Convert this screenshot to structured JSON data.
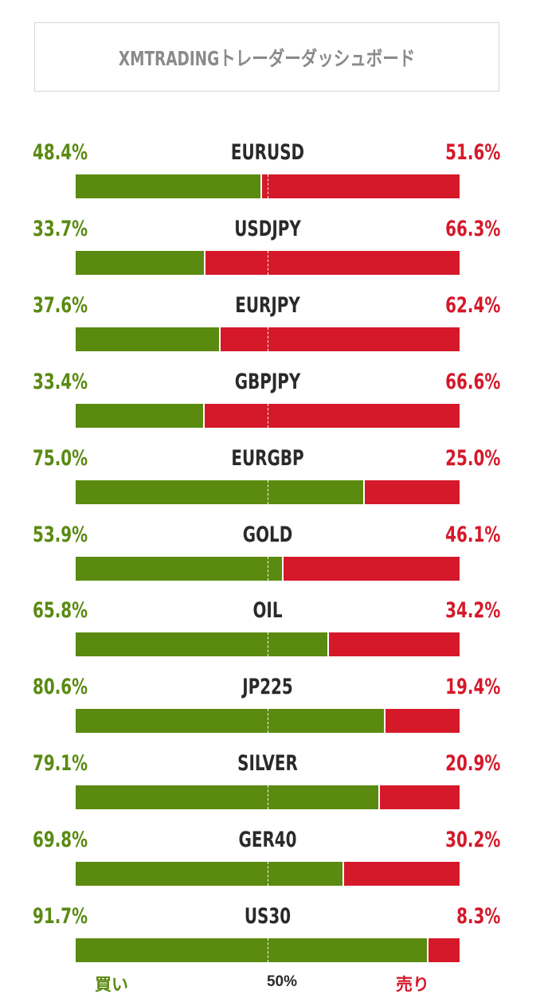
{
  "header": {
    "title": "XMTRADINGトレーダーダッシュボード"
  },
  "colors": {
    "buy": "#5a8a10",
    "sell": "#d5192a",
    "text": "#2a2a2a"
  },
  "chart_data": {
    "type": "bar",
    "orientation": "horizontal-stacked-100",
    "title": "XMTRADINGトレーダーダッシュボード",
    "categories": [
      "EURUSD",
      "USDJPY",
      "EURJPY",
      "GBPJPY",
      "EURGBP",
      "GOLD",
      "OIL",
      "JP225",
      "SILVER",
      "GER40",
      "US30"
    ],
    "series": [
      {
        "name": "買い",
        "values": [
          48.4,
          33.7,
          37.6,
          33.4,
          75.0,
          53.9,
          65.8,
          80.6,
          79.1,
          69.8,
          91.7
        ]
      },
      {
        "name": "売り",
        "values": [
          51.6,
          66.3,
          62.4,
          66.6,
          25.0,
          46.1,
          34.2,
          19.4,
          20.9,
          30.2,
          8.3
        ]
      }
    ],
    "value_labels": {
      "buy": [
        "48.4%",
        "33.7%",
        "37.6%",
        "33.4%",
        "75.0%",
        "53.9%",
        "65.8%",
        "80.6%",
        "79.1%",
        "69.8%",
        "91.7%"
      ],
      "sell": [
        "51.6%",
        "66.3%",
        "62.4%",
        "66.6%",
        "25.0%",
        "46.1%",
        "34.2%",
        "19.4%",
        "20.9%",
        "30.2%",
        "8.3%"
      ]
    },
    "xlim": [
      0,
      100
    ],
    "midline": 50
  },
  "footer": {
    "buy_label": "買い",
    "mid_label": "50%",
    "sell_label": "売り"
  }
}
